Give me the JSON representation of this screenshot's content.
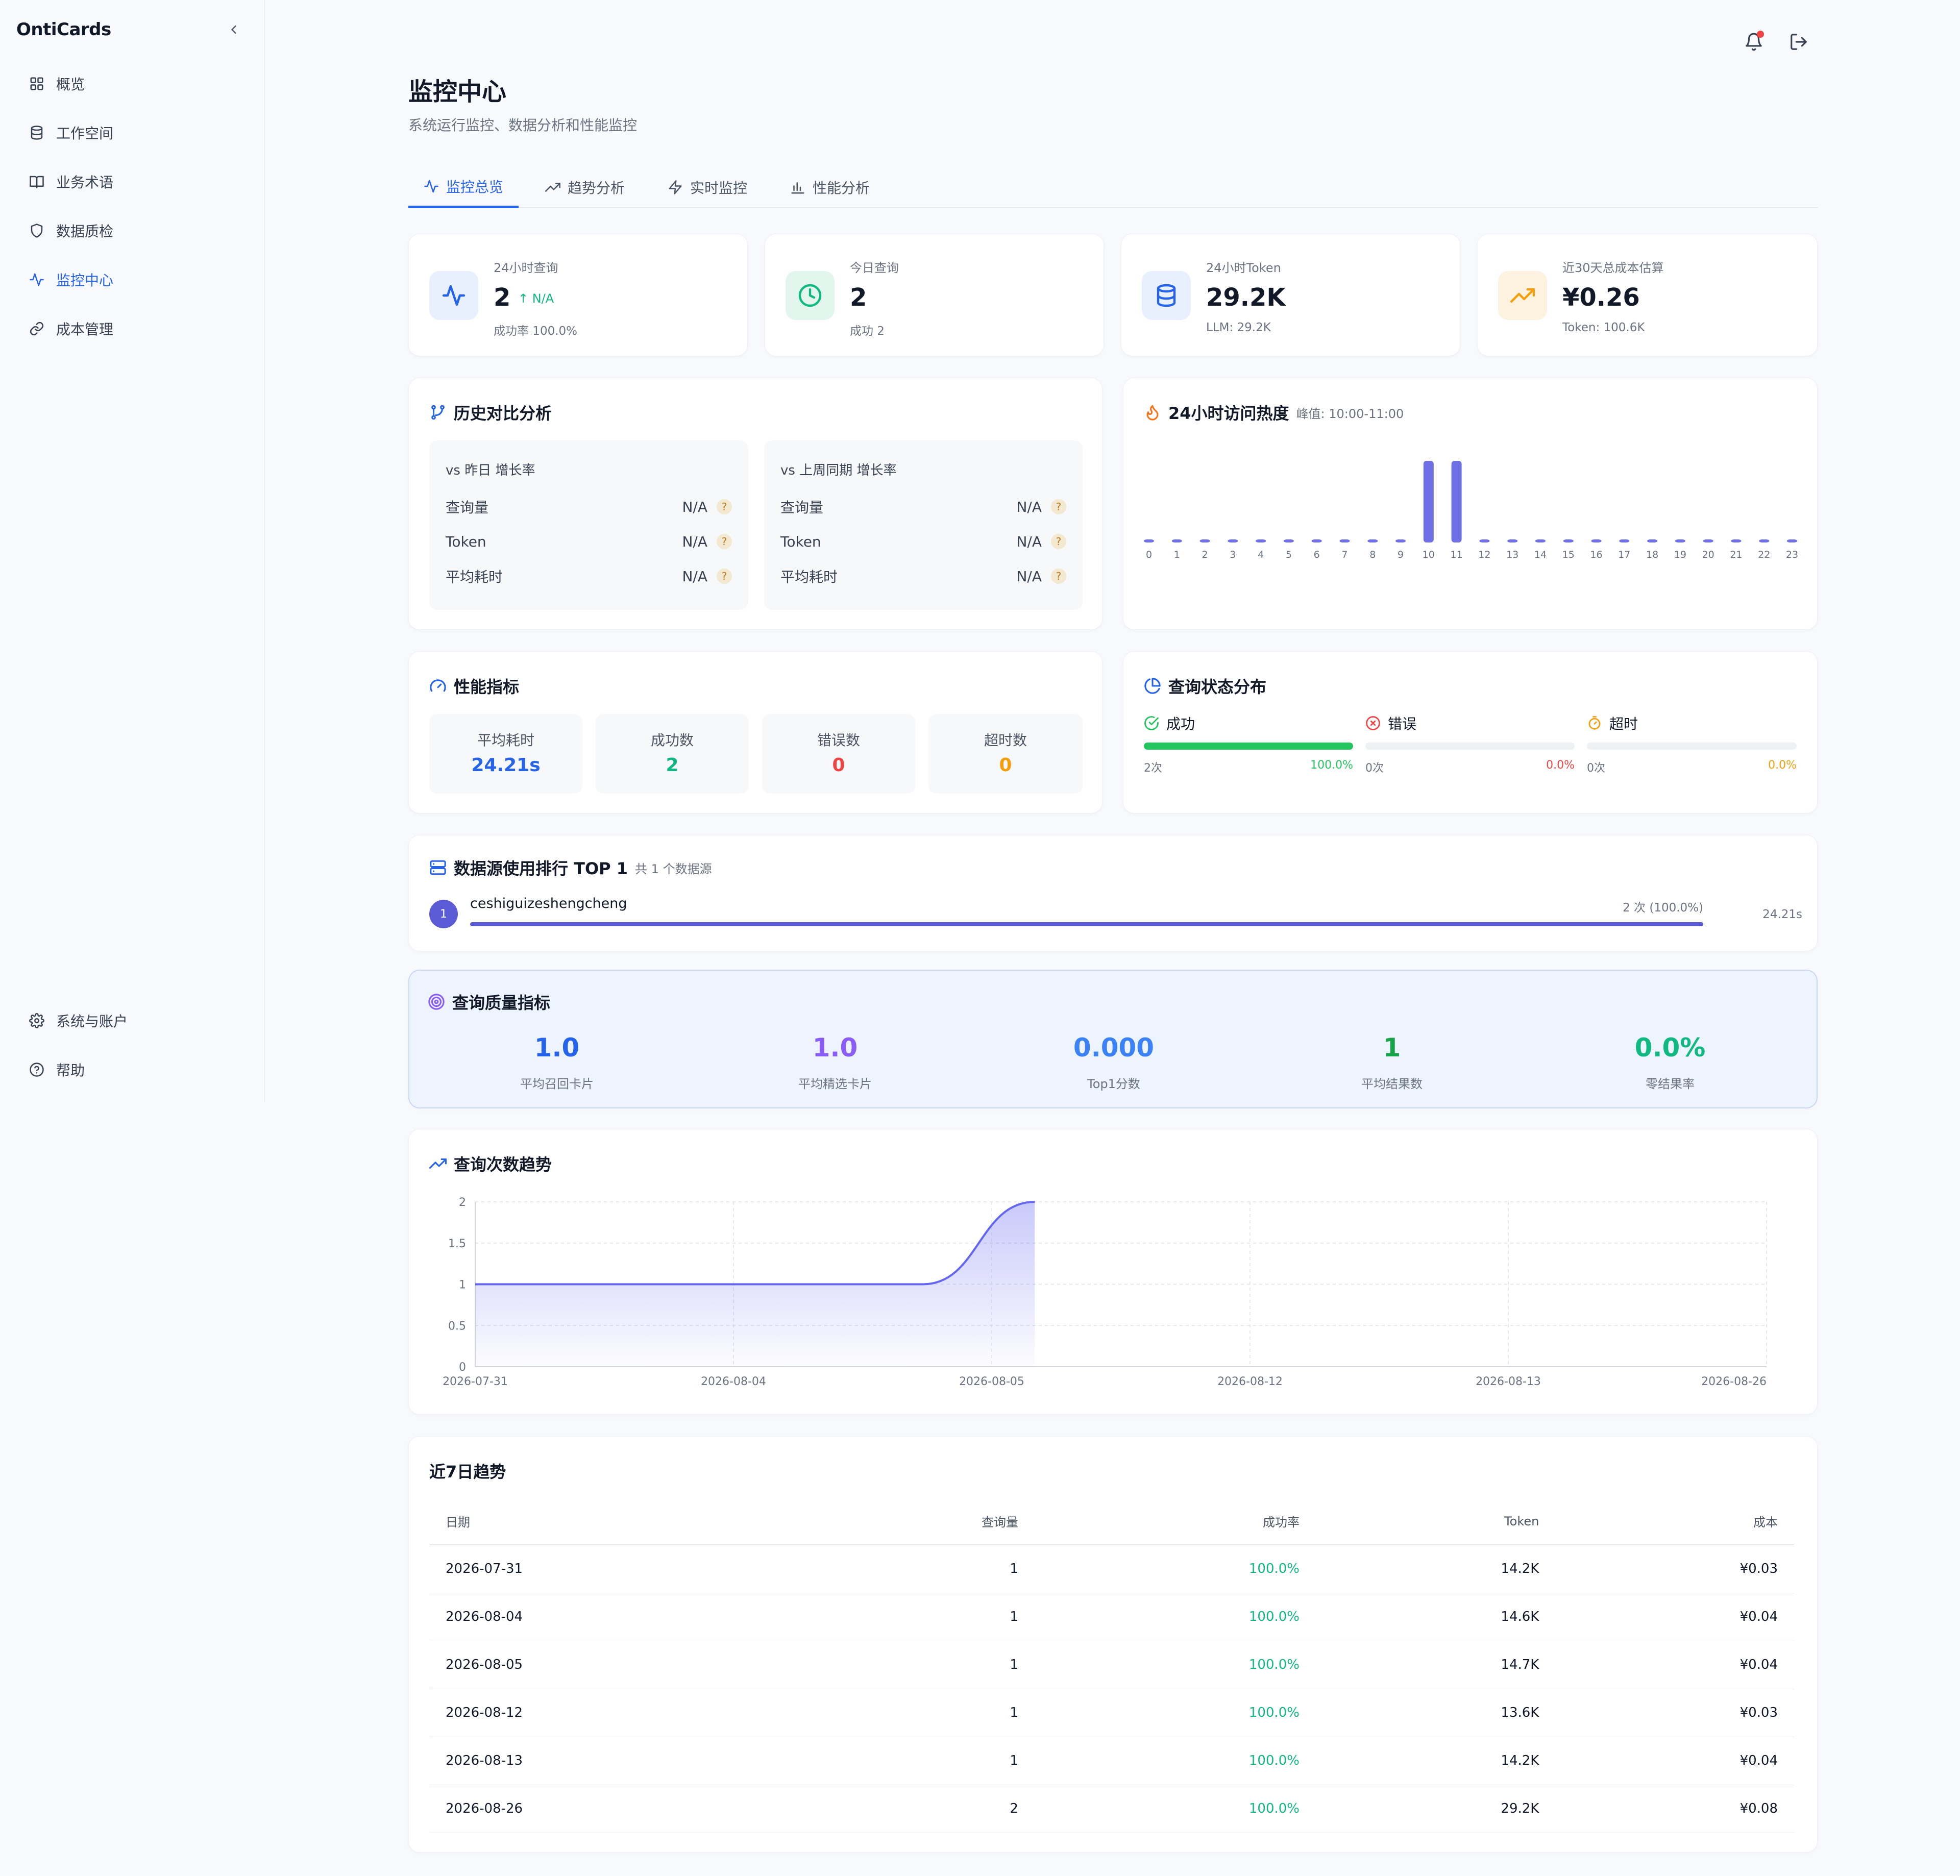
{
  "app": {
    "brand": "OntiCards"
  },
  "sidebar": {
    "items": [
      {
        "label": "概览",
        "icon": "grid-icon"
      },
      {
        "label": "工作空间",
        "icon": "database-icon"
      },
      {
        "label": "业务术语",
        "icon": "book-icon"
      },
      {
        "label": "数据质检",
        "icon": "shield-icon"
      },
      {
        "label": "监控中心",
        "icon": "activity-icon",
        "active": true
      },
      {
        "label": "成本管理",
        "icon": "link-icon"
      }
    ],
    "bottom": [
      {
        "label": "系统与账户",
        "icon": "gear-icon"
      },
      {
        "label": "帮助",
        "icon": "help-circle-icon"
      }
    ]
  },
  "page": {
    "title": "监控中心",
    "subtitle": "系统运行监控、数据分析和性能监控"
  },
  "tabs": [
    {
      "label": "监控总览",
      "active": true
    },
    {
      "label": "趋势分析"
    },
    {
      "label": "实时监控"
    },
    {
      "label": "性能分析"
    }
  ],
  "stats": [
    {
      "label": "24小时查询",
      "value": "2",
      "trend": "N/A",
      "sub": "成功率 100.0%"
    },
    {
      "label": "今日查询",
      "value": "2",
      "sub": "成功 2"
    },
    {
      "label": "24小时Token",
      "value": "29.2K",
      "sub": "LLM: 29.2K"
    },
    {
      "label": "近30天总成本估算",
      "value": "¥0.26",
      "sub": "Token: 100.6K"
    }
  ],
  "history": {
    "title": "历史对比分析",
    "boxes": [
      {
        "head": "vs 昨日 增长率",
        "rows": [
          {
            "label": "查询量",
            "value": "N/A"
          },
          {
            "label": "Token",
            "value": "N/A"
          },
          {
            "label": "平均耗时",
            "value": "N/A"
          }
        ]
      },
      {
        "head": "vs 上周同期 增长率",
        "rows": [
          {
            "label": "查询量",
            "value": "N/A"
          },
          {
            "label": "Token",
            "value": "N/A"
          },
          {
            "label": "平均耗时",
            "value": "N/A"
          }
        ]
      }
    ],
    "qmark": "?"
  },
  "heat": {
    "title": "24小时访问热度",
    "peak": "峰值: 10:00-11:00",
    "hours": [
      "0",
      "1",
      "2",
      "3",
      "4",
      "5",
      "6",
      "7",
      "8",
      "9",
      "10",
      "11",
      "12",
      "13",
      "14",
      "15",
      "16",
      "17",
      "18",
      "19",
      "20",
      "21",
      "22",
      "23"
    ],
    "values": [
      0,
      0,
      0,
      0,
      0,
      0,
      0,
      0,
      0,
      0,
      1,
      1,
      0,
      0,
      0,
      0,
      0,
      0,
      0,
      0,
      0,
      0,
      0,
      0
    ],
    "color": "#6f6fe6"
  },
  "performance": {
    "title": "性能指标",
    "metrics": [
      {
        "label": "平均耗时",
        "value": "24.21s",
        "color": "#2563eb"
      },
      {
        "label": "成功数",
        "value": "2",
        "color": "#10b981"
      },
      {
        "label": "错误数",
        "value": "0",
        "color": "#ef4444"
      },
      {
        "label": "超时数",
        "value": "0",
        "color": "#f59e0b"
      }
    ]
  },
  "status": {
    "title": "查询状态分布",
    "items": [
      {
        "label": "成功",
        "count": "2次",
        "percent": "100.0%",
        "fraction": 1.0,
        "color": "#22c55e"
      },
      {
        "label": "错误",
        "count": "0次",
        "percent": "0.0%",
        "fraction": 0.0,
        "color": "#ef4444"
      },
      {
        "label": "超时",
        "count": "0次",
        "percent": "0.0%",
        "fraction": 0.0,
        "color": "#f59e0b"
      }
    ]
  },
  "datasource": {
    "title": "数据源使用排行 TOP 1",
    "count": "共 1 个数据源",
    "items": [
      {
        "rank": "1",
        "name": "ceshiguizeshengcheng",
        "usage": "2 次 (100.0%)",
        "fraction": 1.0,
        "time": "24.21s"
      }
    ]
  },
  "quality": {
    "title": "查询质量指标",
    "metrics": [
      {
        "value": "1.0",
        "label": "平均召回卡片",
        "color": "#2563eb"
      },
      {
        "value": "1.0",
        "label": "平均精选卡片",
        "color": "#8b5cf6"
      },
      {
        "value": "0.000",
        "label": "Top1分数",
        "color": "#3b82f6"
      },
      {
        "value": "1",
        "label": "平均结果数",
        "color": "#16a34a"
      },
      {
        "value": "0.0%",
        "label": "零结果率",
        "color": "#10b981"
      }
    ]
  },
  "trend": {
    "title": "查询次数趋势",
    "chart_data": {
      "type": "area",
      "x": [
        "2026-07-31",
        "2026-08-04",
        "2026-08-05",
        "2026-08-12",
        "2026-08-13",
        "2026-08-26"
      ],
      "series": [
        {
          "values": [
            1,
            1,
            1,
            1,
            1,
            2
          ]
        }
      ],
      "ylim": [
        0,
        2
      ],
      "yticks": [
        "0",
        "0.5",
        "1",
        "1.5",
        "2"
      ],
      "grid": true,
      "color": "#6366f1"
    }
  },
  "weekly": {
    "title": "近7日趋势",
    "columns": [
      "日期",
      "查询量",
      "成功率",
      "Token",
      "成本"
    ],
    "rows": [
      [
        "2026-07-31",
        "1",
        "100.0%",
        "14.2K",
        "¥0.03"
      ],
      [
        "2026-08-04",
        "1",
        "100.0%",
        "14.6K",
        "¥0.04"
      ],
      [
        "2026-08-05",
        "1",
        "100.0%",
        "14.7K",
        "¥0.04"
      ],
      [
        "2026-08-12",
        "1",
        "100.0%",
        "13.6K",
        "¥0.03"
      ],
      [
        "2026-08-13",
        "1",
        "100.0%",
        "14.2K",
        "¥0.04"
      ],
      [
        "2026-08-26",
        "2",
        "100.0%",
        "29.2K",
        "¥0.08"
      ]
    ]
  }
}
